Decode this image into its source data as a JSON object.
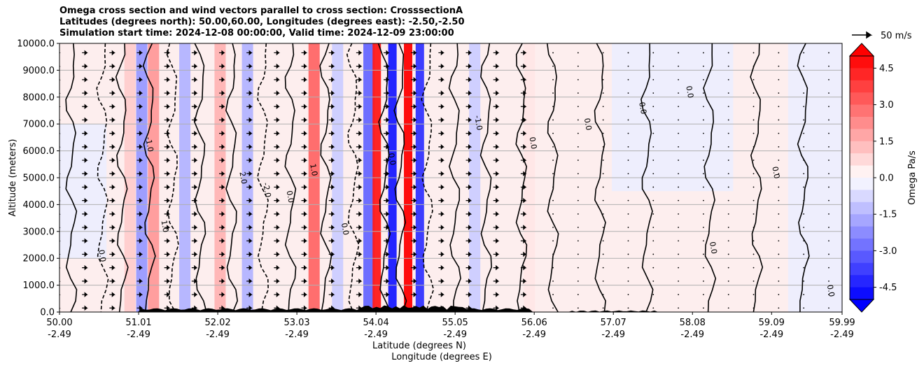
{
  "chart_data": {
    "type": "heatmap",
    "title_lines": [
      "Omega cross section and wind vectors parallel to cross section: CrosssectionA",
      "Latitudes (degrees north): 50.00,60.00, Longitudes (degrees east): -2.50,-2.50",
      "Simulation start time: 2024-12-08 00:00:00, Valid time: 2024-12-09 23:00:00"
    ],
    "ylabel": "Altitude (meters)",
    "xlabel_lat": "Latitude (degrees N)",
    "xlabel_lon": "Longitude (degrees E)",
    "ylim": [
      0,
      10000
    ],
    "yticks": [
      "0.0",
      "1000.0",
      "2000.0",
      "3000.0",
      "4000.0",
      "5000.0",
      "6000.0",
      "7000.0",
      "8000.0",
      "9000.0",
      "10000.0"
    ],
    "xticks": [
      {
        "lat": "50.00",
        "lon": "-2.49"
      },
      {
        "lat": "51.01",
        "lon": "-2.49"
      },
      {
        "lat": "52.02",
        "lon": "-2.49"
      },
      {
        "lat": "53.03",
        "lon": "-2.49"
      },
      {
        "lat": "54.04",
        "lon": "-2.49"
      },
      {
        "lat": "55.05",
        "lon": "-2.49"
      },
      {
        "lat": "56.06",
        "lon": "-2.49"
      },
      {
        "lat": "57.07",
        "lon": "-2.49"
      },
      {
        "lat": "58.08",
        "lon": "-2.49"
      },
      {
        "lat": "59.09",
        "lon": "-2.49"
      },
      {
        "lat": "59.99",
        "lon": "-2.49"
      }
    ],
    "colorbar": {
      "label": "Omega Pa/s",
      "range": [
        -5.0,
        5.0
      ],
      "ticks": [
        "4.5",
        "3.0",
        "1.5",
        "0.0",
        "-1.5",
        "-3.0",
        "-4.5"
      ],
      "extend": "both"
    },
    "quiver_key": "50 m/s",
    "contour_labels": [
      "0.0",
      "-1.0",
      "1.0",
      "2.0",
      "-2.0",
      "0.0",
      "1.0",
      "0.0",
      "0.0",
      "-1.0",
      "0.0",
      "0.0",
      "0.0",
      "0.0",
      "0.0",
      "0.0",
      "0.0"
    ],
    "omega_bands": [
      {
        "lat": 50.9,
        "value": 1.0
      },
      {
        "lat": 51.05,
        "value": -2.0
      },
      {
        "lat": 51.2,
        "value": 2.0
      },
      {
        "lat": 51.6,
        "value": -1.5
      },
      {
        "lat": 52.05,
        "value": 1.5
      },
      {
        "lat": 52.4,
        "value": -1.5
      },
      {
        "lat": 53.25,
        "value": 3.0
      },
      {
        "lat": 53.55,
        "value": -1.0
      },
      {
        "lat": 53.95,
        "value": -3.0
      },
      {
        "lat": 54.05,
        "value": 4.5
      },
      {
        "lat": 54.25,
        "value": -4.5
      },
      {
        "lat": 54.45,
        "value": 5.0
      },
      {
        "lat": 54.6,
        "value": -4.0
      },
      {
        "lat": 55.3,
        "value": -1.0
      },
      {
        "lat": 56.0,
        "value": 0.5
      }
    ],
    "colors": {
      "pos_max": "#ff0000",
      "neg_max": "#0000ff",
      "neutral": "#ffffff"
    }
  }
}
